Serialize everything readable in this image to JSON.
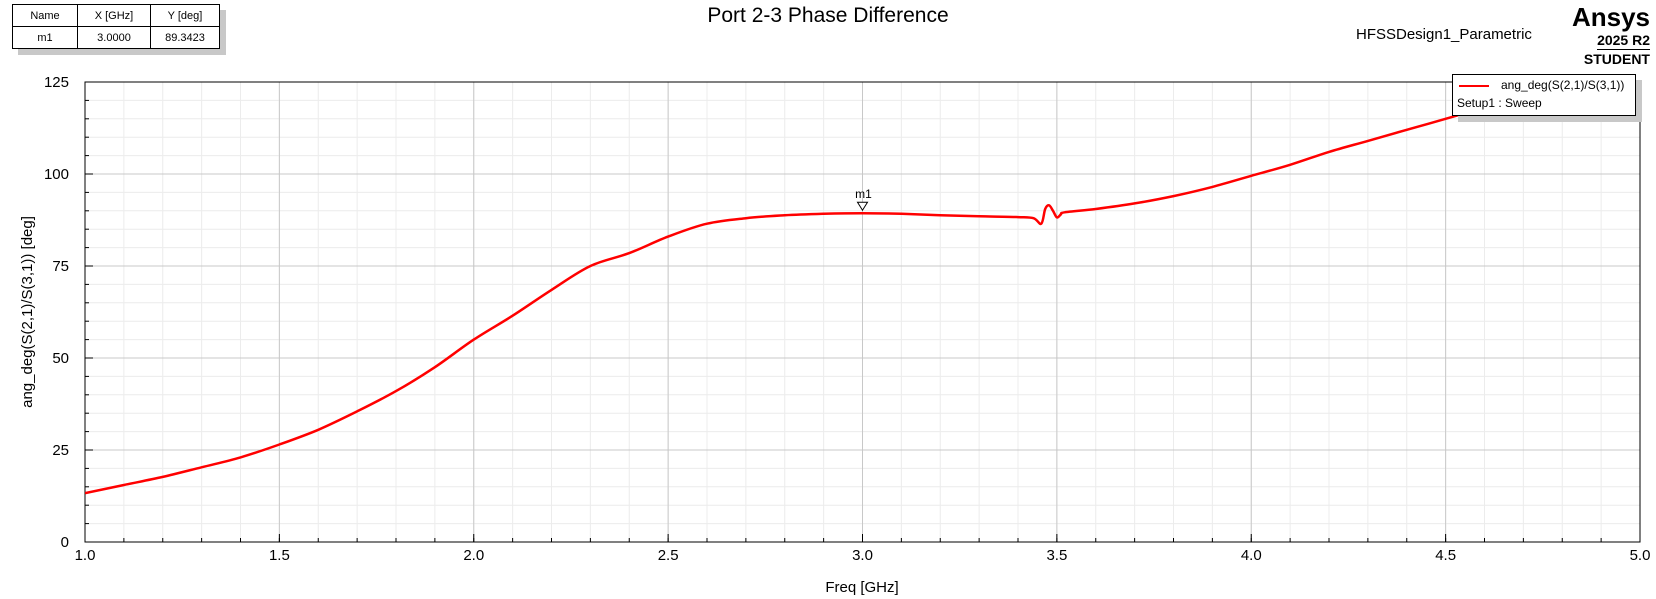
{
  "header": {
    "title": "Port 2-3 Phase Difference",
    "design_name": "HFSSDesign1_Parametric"
  },
  "brand": {
    "name": "Ansys",
    "version": "2025 R2",
    "edition": "STUDENT"
  },
  "marker_table": {
    "headers": [
      "Name",
      "X [GHz]",
      "Y [deg]"
    ],
    "rows": [
      [
        "m1",
        "3.0000",
        "89.3423"
      ]
    ]
  },
  "legend": {
    "series_label": "ang_deg(S(2,1)/S(3,1))",
    "sweep_label": "Setup1 : Sweep"
  },
  "chart_data": {
    "type": "line",
    "title": "Port 2-3 Phase Difference",
    "xlabel": "Freq [GHz]",
    "ylabel": "ang_deg(S(2,1)/S(3,1)) [deg]",
    "xlim": [
      1.0,
      5.0
    ],
    "ylim": [
      0,
      125
    ],
    "x_ticks": [
      "1.0",
      "1.5",
      "2.0",
      "2.5",
      "3.0",
      "3.5",
      "4.0",
      "4.5",
      "5.0"
    ],
    "y_ticks": [
      "0",
      "25",
      "50",
      "75",
      "100",
      "125"
    ],
    "grid": true,
    "legend_position": "top-right",
    "series": [
      {
        "name": "ang_deg(S(2,1)/S(3,1))",
        "color": "#ff0000",
        "x": [
          1.0,
          1.1,
          1.2,
          1.3,
          1.4,
          1.5,
          1.6,
          1.7,
          1.8,
          1.9,
          2.0,
          2.1,
          2.2,
          2.3,
          2.4,
          2.5,
          2.6,
          2.7,
          2.8,
          2.9,
          3.0,
          3.1,
          3.2,
          3.3,
          3.4,
          3.44,
          3.46,
          3.47,
          3.48,
          3.49,
          3.5,
          3.51,
          3.52,
          3.6,
          3.7,
          3.8,
          3.9,
          4.0,
          4.1,
          4.2,
          4.3,
          4.4,
          4.5,
          4.6,
          4.7,
          4.8,
          4.9,
          5.0
        ],
        "y": [
          13.3,
          15.5,
          17.7,
          20.3,
          23.0,
          26.5,
          30.5,
          35.5,
          41.0,
          47.5,
          55.0,
          61.5,
          68.5,
          75.0,
          78.5,
          83.0,
          86.5,
          88.0,
          88.8,
          89.2,
          89.34,
          89.2,
          88.8,
          88.5,
          88.3,
          88.0,
          86.5,
          90.5,
          91.5,
          90.0,
          88.2,
          89.0,
          89.6,
          90.5,
          92.0,
          94.0,
          96.5,
          99.5,
          102.5,
          106.0,
          109.0,
          112.0,
          115.0,
          118.0,
          121.0,
          123.5,
          126.0,
          128.5
        ]
      }
    ],
    "markers": [
      {
        "name": "m1",
        "x": 3.0,
        "y": 89.3423
      }
    ]
  }
}
